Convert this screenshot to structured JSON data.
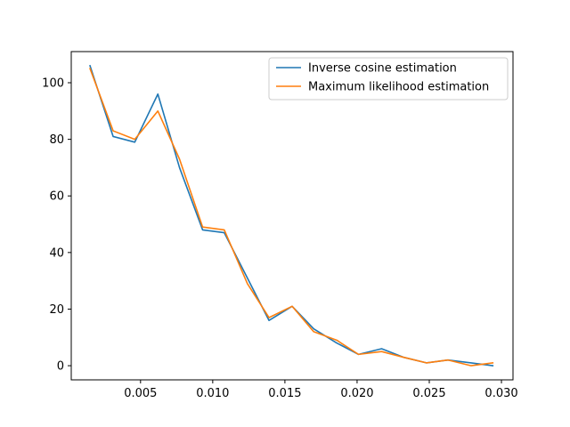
{
  "chart_data": {
    "type": "line",
    "title": "",
    "xlabel": "",
    "ylabel": "",
    "xlim": [
      0.0002,
      0.0308
    ],
    "ylim": [
      -5,
      111
    ],
    "grid": false,
    "legend_position": "top-right",
    "x": [
      0.0015,
      0.0031,
      0.0046,
      0.0062,
      0.0077,
      0.0093,
      0.0108,
      0.0124,
      0.0139,
      0.0155,
      0.017,
      0.0186,
      0.0201,
      0.0217,
      0.0232,
      0.0248,
      0.0263,
      0.0279,
      0.0294
    ],
    "x_ticks": [
      0.005,
      0.01,
      0.015,
      0.02,
      0.025,
      0.03
    ],
    "x_tick_labels": [
      "0.005",
      "0.010",
      "0.015",
      "0.020",
      "0.025",
      "0.030"
    ],
    "y_ticks": [
      0,
      20,
      40,
      60,
      80,
      100
    ],
    "y_tick_labels": [
      "0",
      "20",
      "40",
      "60",
      "80",
      "100"
    ],
    "series": [
      {
        "name": "Inverse cosine estimation",
        "color": "#1f77b4",
        "values": [
          106,
          81,
          79,
          96,
          70,
          48,
          47,
          31,
          16,
          21,
          13,
          8,
          4,
          6,
          3,
          1,
          2,
          1,
          0
        ]
      },
      {
        "name": "Maximum likelihood estimation",
        "color": "#ff7f0e",
        "values": [
          105,
          83,
          80,
          90,
          73,
          49,
          48,
          29,
          17,
          21,
          12,
          9,
          4,
          5,
          3,
          1,
          2,
          0,
          1
        ]
      }
    ]
  }
}
